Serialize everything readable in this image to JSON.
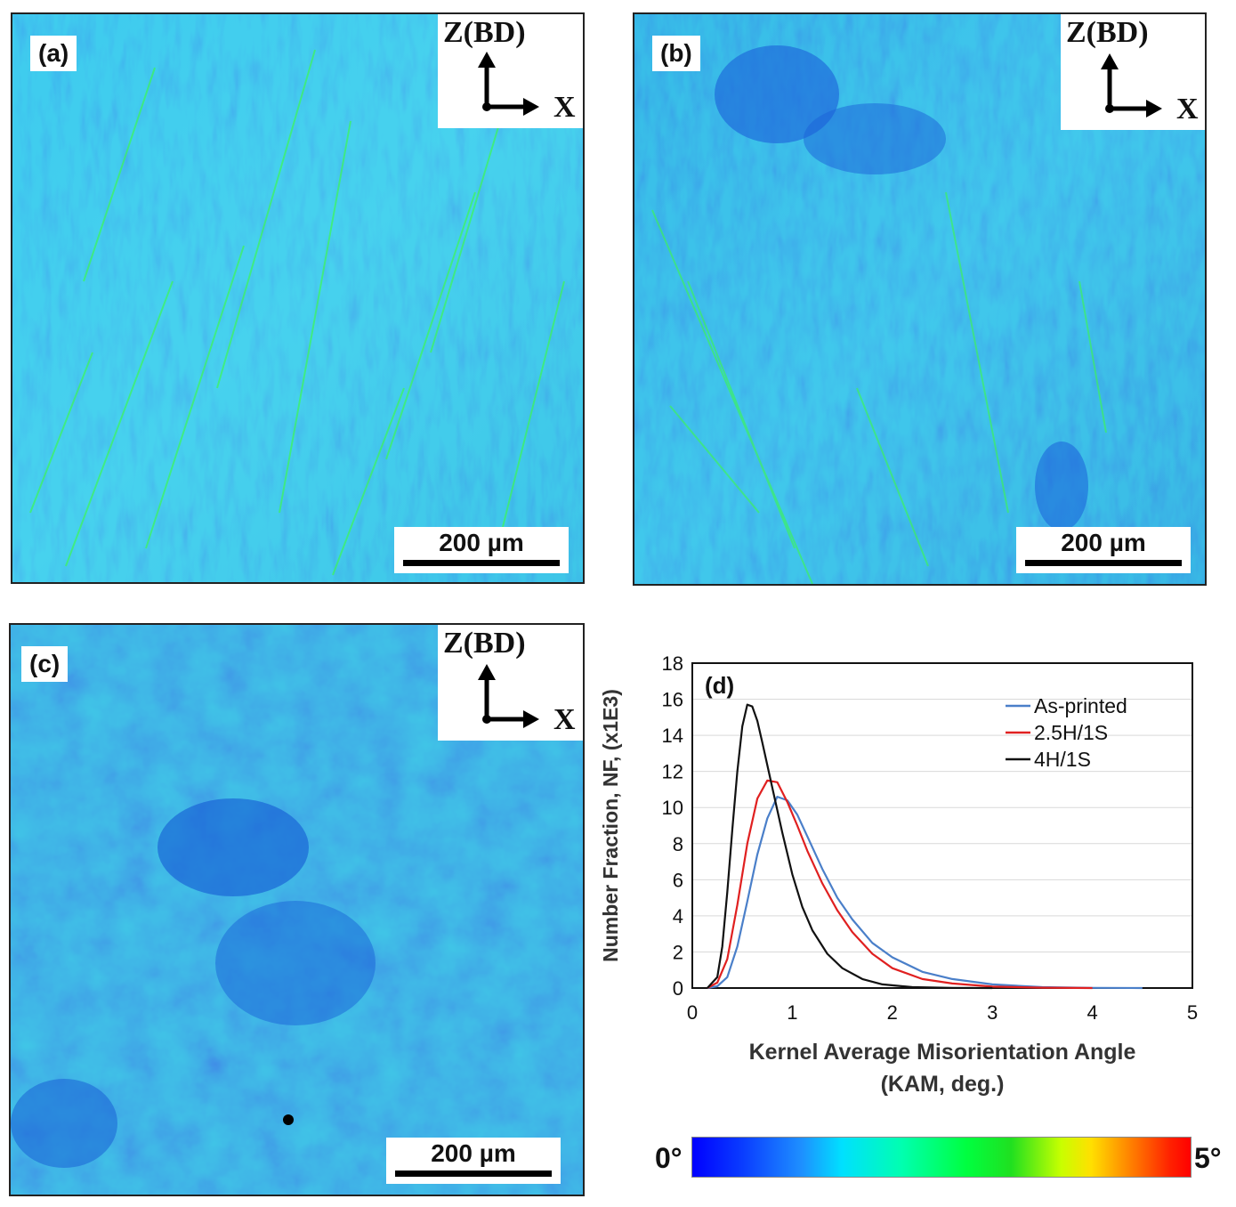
{
  "panels": [
    {
      "id": "a",
      "label": "(a)",
      "scale_bar": "200 µm",
      "axes": {
        "vertical": "Z(BD)",
        "horizontal": "X"
      }
    },
    {
      "id": "b",
      "label": "(b)",
      "scale_bar": "200 µm",
      "axes": {
        "vertical": "Z(BD)",
        "horizontal": "X"
      }
    },
    {
      "id": "c",
      "label": "(c)",
      "scale_bar": "200 µm",
      "axes": {
        "vertical": "Z(BD)",
        "horizontal": "X"
      }
    }
  ],
  "colorbar": {
    "min_label": "0°",
    "max_label": "5°"
  },
  "chart_data": {
    "type": "line",
    "panel_label": "(d)",
    "xlabel_line1": "Kernel Average Misorientation Angle",
    "xlabel_line2": "(KAM, deg.)",
    "ylabel": "Number Fraction, NF, (x1E3)",
    "xlim": [
      0,
      5
    ],
    "ylim": [
      0,
      18
    ],
    "xticks": [
      0,
      1,
      2,
      3,
      4,
      5
    ],
    "yticks": [
      0,
      2,
      4,
      6,
      8,
      10,
      12,
      14,
      16,
      18
    ],
    "grid": "horizontal",
    "legend_position": "top-right",
    "series": [
      {
        "name": "As-printed",
        "color": "#4a7fc9",
        "x": [
          0.15,
          0.25,
          0.35,
          0.45,
          0.55,
          0.65,
          0.75,
          0.85,
          0.95,
          1.05,
          1.15,
          1.3,
          1.45,
          1.6,
          1.8,
          2.0,
          2.3,
          2.6,
          3.0,
          3.5,
          4.0,
          4.5
        ],
        "y": [
          0,
          0.1,
          0.6,
          2.3,
          4.8,
          7.4,
          9.4,
          10.6,
          10.4,
          9.6,
          8.4,
          6.6,
          5.0,
          3.8,
          2.5,
          1.7,
          0.9,
          0.5,
          0.2,
          0.05,
          0.01,
          0
        ]
      },
      {
        "name": "2.5H/1S",
        "color": "#e02020",
        "x": [
          0.15,
          0.25,
          0.35,
          0.45,
          0.55,
          0.65,
          0.75,
          0.85,
          0.95,
          1.05,
          1.15,
          1.3,
          1.45,
          1.6,
          1.8,
          2.0,
          2.3,
          2.6,
          3.0,
          3.5,
          4.0
        ],
        "y": [
          0,
          0.3,
          1.6,
          4.6,
          8.0,
          10.5,
          11.5,
          11.4,
          10.3,
          9.0,
          7.6,
          5.8,
          4.3,
          3.1,
          1.9,
          1.1,
          0.5,
          0.25,
          0.08,
          0.02,
          0
        ]
      },
      {
        "name": "4H/1S",
        "color": "#111111",
        "x": [
          0.15,
          0.25,
          0.3,
          0.35,
          0.4,
          0.45,
          0.5,
          0.55,
          0.6,
          0.65,
          0.7,
          0.8,
          0.9,
          1.0,
          1.1,
          1.2,
          1.35,
          1.5,
          1.7,
          1.9,
          2.2,
          2.6,
          3.0
        ],
        "y": [
          0,
          0.6,
          2.3,
          5.3,
          8.8,
          12.0,
          14.5,
          15.7,
          15.6,
          14.8,
          13.6,
          11.1,
          8.6,
          6.3,
          4.5,
          3.2,
          1.9,
          1.1,
          0.5,
          0.2,
          0.05,
          0.01,
          0
        ]
      }
    ]
  }
}
